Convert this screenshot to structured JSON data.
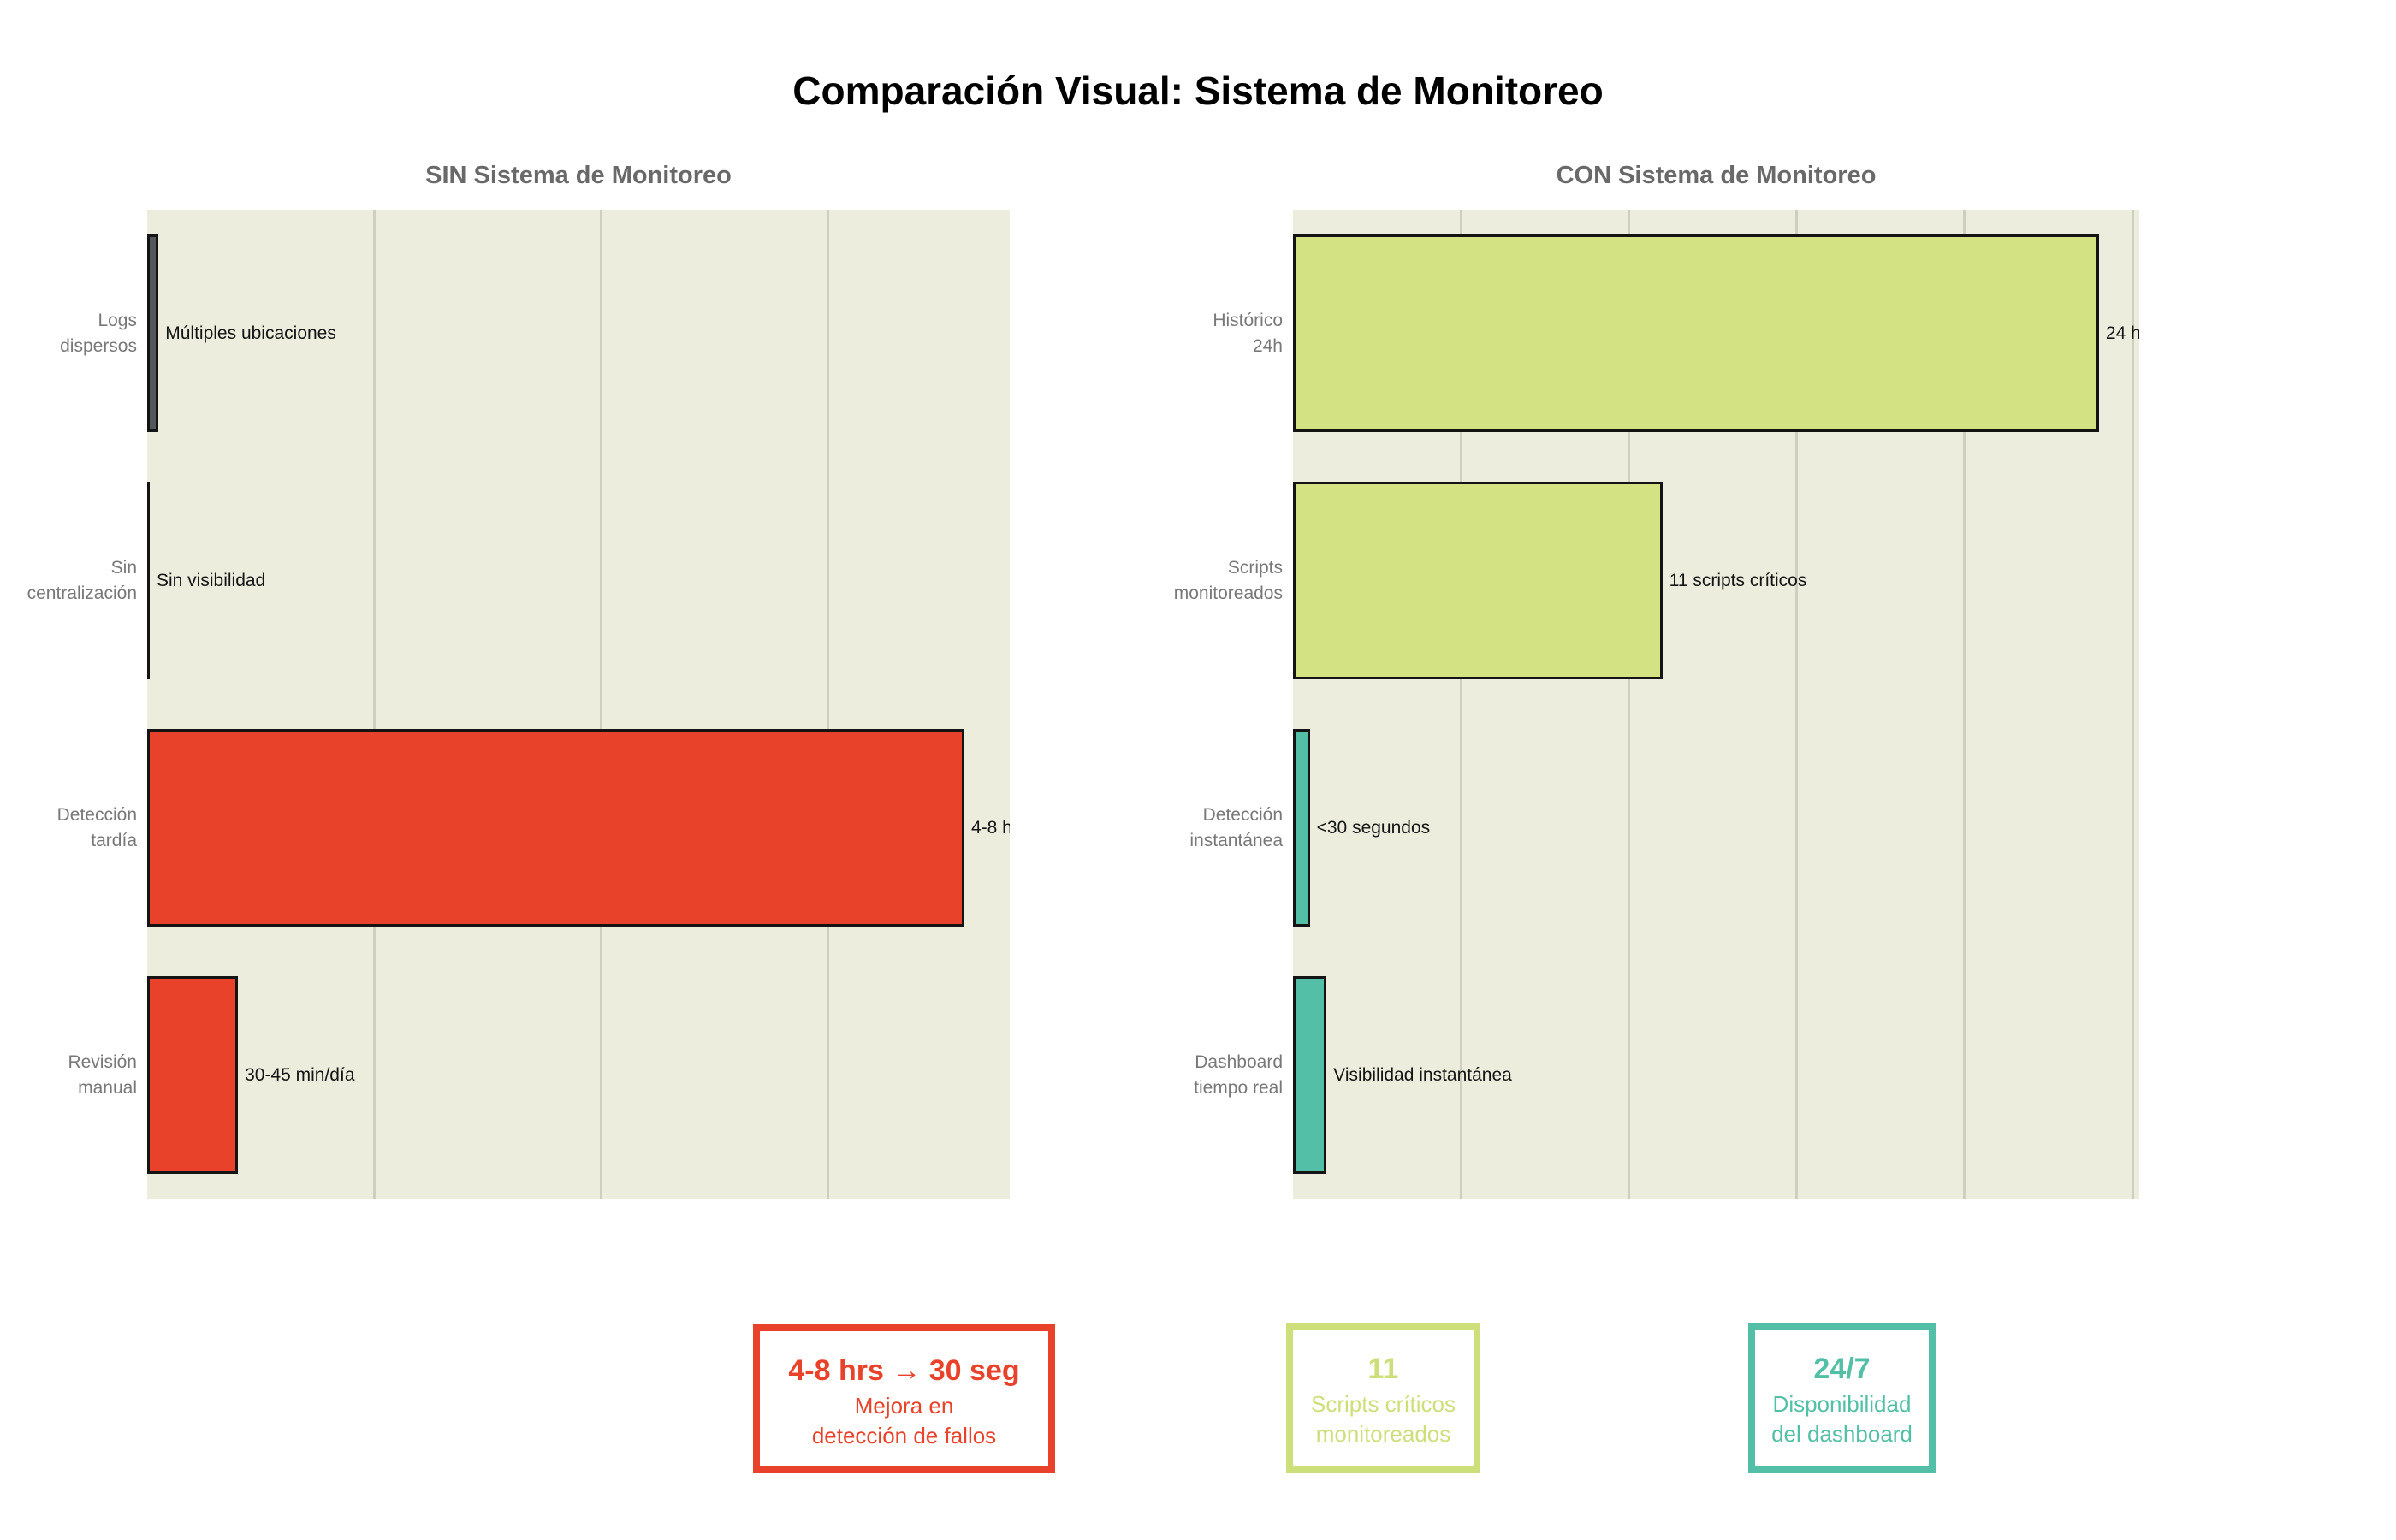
{
  "title": "Comparación Visual: Sistema de Monitoreo",
  "chart_data": [
    {
      "type": "bar",
      "orientation": "horizontal",
      "title": "SIN Sistema de Monitoreo",
      "categories": [
        [
          "Logs",
          "dispersos"
        ],
        [
          "Sin",
          "centralización"
        ],
        [
          "Detección",
          "tardía"
        ],
        [
          "Revisión",
          "manual"
        ]
      ],
      "values": [
        0.1,
        0,
        7.2,
        0.8
      ],
      "value_labels": [
        "Múltiples ubicaciones",
        "Sin visibilidad",
        "4-8 h",
        "30-45 min/día"
      ],
      "bar_colors": [
        "#55585A",
        "#55585A",
        "#E8432A",
        "#E8432A"
      ],
      "xlim": [
        0,
        7.6
      ],
      "gridlines": [
        2,
        4,
        6
      ],
      "grid": true,
      "legend": false,
      "xlabel": "",
      "ylabel": ""
    },
    {
      "type": "bar",
      "orientation": "horizontal",
      "title": "CON Sistema de Monitoreo",
      "categories": [
        [
          "Histórico",
          "24h"
        ],
        [
          "Scripts",
          "monitoreados"
        ],
        [
          "Detección",
          "instantánea"
        ],
        [
          "Dashboard",
          "tiempo real"
        ]
      ],
      "values": [
        24,
        11,
        0.5,
        1
      ],
      "value_labels": [
        "24 h",
        "11 scripts críticos",
        "<30 segundos",
        "Visibilidad instantánea"
      ],
      "bar_colors": [
        "#D3E283",
        "#D3E283",
        "#53BFA7",
        "#53BFA7"
      ],
      "xlim": [
        0,
        25.2
      ],
      "gridlines": [
        5,
        10,
        15,
        20,
        25
      ],
      "grid": true,
      "legend": false,
      "xlabel": "",
      "ylabel": ""
    }
  ],
  "summary_boxes": [
    {
      "title": "4-8 hrs → 30 seg",
      "lines": [
        "Mejora en",
        "detección de fallos"
      ],
      "color": "#E8432A"
    },
    {
      "title": "11",
      "lines": [
        "Scripts críticos",
        "monitoreados"
      ],
      "color": "#CDDF7B"
    },
    {
      "title": "24/7",
      "lines": [
        "Disponibilidad",
        "del dashboard"
      ],
      "color": "#52BFA6"
    }
  ],
  "style": {
    "figure_bg": "#FFFFFF",
    "plot_bg": "#ECEDDD",
    "grid_color": "#CDCFC0",
    "tick_color": "#787878",
    "axes_title_color": "#696969",
    "bar_edge_color": "#141414"
  }
}
